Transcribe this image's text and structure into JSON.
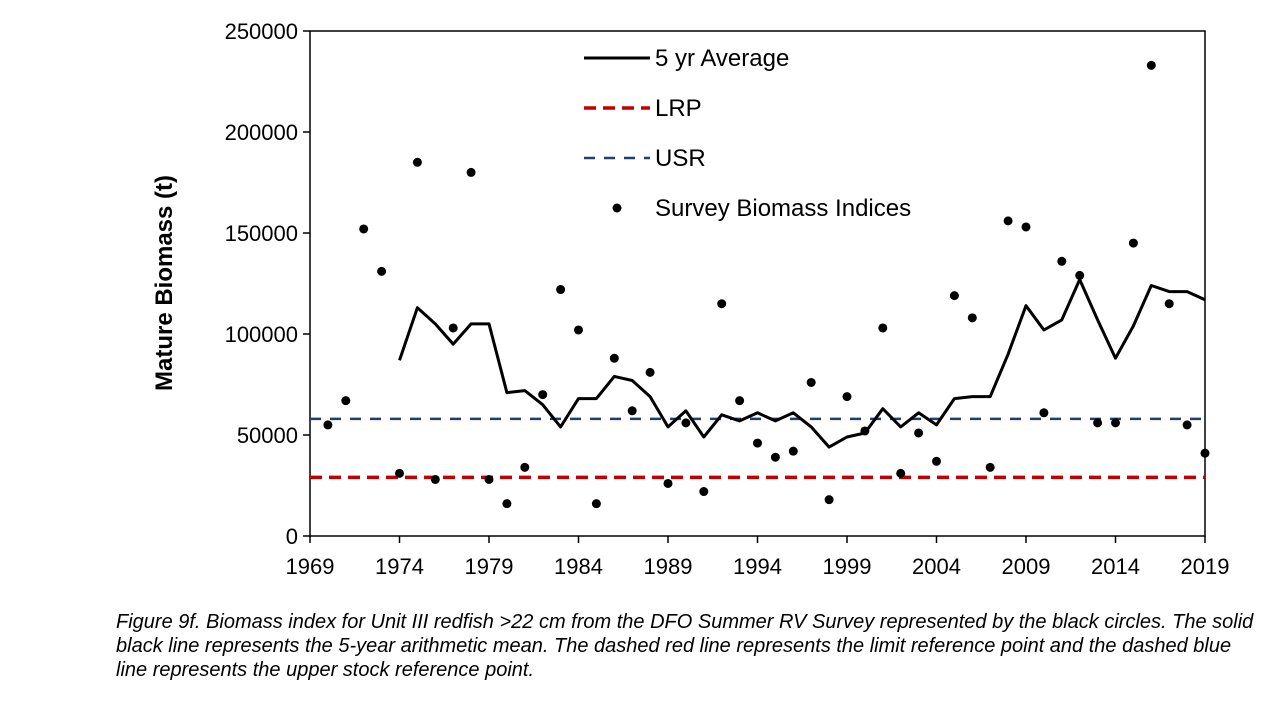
{
  "chart_data": {
    "type": "line",
    "title": "",
    "xlabel": "",
    "ylabel": "Mature Biomass (t)",
    "xlim": [
      1969,
      2019
    ],
    "ylim": [
      0,
      250000
    ],
    "x_ticks": [
      "1969",
      "1974",
      "1979",
      "1984",
      "1989",
      "1994",
      "1999",
      "2004",
      "2009",
      "2014",
      "2019"
    ],
    "y_ticks": [
      "0",
      "50000",
      "100000",
      "150000",
      "200000",
      "250000"
    ],
    "grid": false,
    "legend_position": "top-center",
    "series": [
      {
        "name": "5 yr Average",
        "kind": "line",
        "style": "solid",
        "color": "#000000",
        "points": [
          [
            1974,
            87000
          ],
          [
            1975,
            113000
          ],
          [
            1976,
            105000
          ],
          [
            1977,
            95000
          ],
          [
            1978,
            105000
          ],
          [
            1979,
            105000
          ],
          [
            1980,
            71000
          ],
          [
            1981,
            72000
          ],
          [
            1982,
            65000
          ],
          [
            1983,
            54000
          ],
          [
            1984,
            68000
          ],
          [
            1985,
            68000
          ],
          [
            1986,
            79000
          ],
          [
            1987,
            77000
          ],
          [
            1988,
            69000
          ],
          [
            1989,
            54000
          ],
          [
            1990,
            62000
          ],
          [
            1991,
            49000
          ],
          [
            1992,
            60000
          ],
          [
            1993,
            57000
          ],
          [
            1994,
            61000
          ],
          [
            1995,
            57000
          ],
          [
            1996,
            61000
          ],
          [
            1997,
            54000
          ],
          [
            1998,
            44000
          ],
          [
            1999,
            49000
          ],
          [
            2000,
            51000
          ],
          [
            2001,
            63000
          ],
          [
            2002,
            54000
          ],
          [
            2003,
            61000
          ],
          [
            2004,
            55000
          ],
          [
            2005,
            68000
          ],
          [
            2006,
            69000
          ],
          [
            2007,
            69000
          ],
          [
            2008,
            90000
          ],
          [
            2009,
            114000
          ],
          [
            2010,
            102000
          ],
          [
            2011,
            107000
          ],
          [
            2012,
            127000
          ],
          [
            2013,
            107000
          ],
          [
            2014,
            88000
          ],
          [
            2015,
            104000
          ],
          [
            2016,
            124000
          ],
          [
            2017,
            121000
          ],
          [
            2018,
            121000
          ],
          [
            2019,
            117000
          ]
        ]
      },
      {
        "name": "LRP",
        "kind": "reference",
        "style": "dashed",
        "color": "#c00000",
        "x": [
          1969,
          2019
        ],
        "value": 29000
      },
      {
        "name": "USR",
        "kind": "reference",
        "style": "dashed",
        "color": "#1f3f6e",
        "x": [
          1969,
          2019
        ],
        "value": 58000
      },
      {
        "name": "Survey Biomass Indices",
        "kind": "scatter",
        "color": "#000000",
        "points": [
          [
            1970,
            55000
          ],
          [
            1971,
            67000
          ],
          [
            1972,
            152000
          ],
          [
            1973,
            131000
          ],
          [
            1974,
            31000
          ],
          [
            1975,
            185000
          ],
          [
            1976,
            28000
          ],
          [
            1977,
            103000
          ],
          [
            1978,
            180000
          ],
          [
            1979,
            28000
          ],
          [
            1980,
            16000
          ],
          [
            1981,
            34000
          ],
          [
            1982,
            70000
          ],
          [
            1983,
            122000
          ],
          [
            1984,
            102000
          ],
          [
            1985,
            16000
          ],
          [
            1986,
            88000
          ],
          [
            1987,
            62000
          ],
          [
            1988,
            81000
          ],
          [
            1989,
            26000
          ],
          [
            1990,
            56000
          ],
          [
            1991,
            22000
          ],
          [
            1992,
            115000
          ],
          [
            1993,
            67000
          ],
          [
            1994,
            46000
          ],
          [
            1995,
            39000
          ],
          [
            1996,
            42000
          ],
          [
            1997,
            76000
          ],
          [
            1998,
            18000
          ],
          [
            1999,
            69000
          ],
          [
            2000,
            52000
          ],
          [
            2001,
            103000
          ],
          [
            2002,
            31000
          ],
          [
            2003,
            51000
          ],
          [
            2004,
            37000
          ],
          [
            2005,
            119000
          ],
          [
            2006,
            108000
          ],
          [
            2007,
            34000
          ],
          [
            2008,
            156000
          ],
          [
            2009,
            153000
          ],
          [
            2010,
            61000
          ],
          [
            2011,
            136000
          ],
          [
            2012,
            129000
          ],
          [
            2013,
            56000
          ],
          [
            2014,
            56000
          ],
          [
            2015,
            145000
          ],
          [
            2016,
            233000
          ],
          [
            2017,
            115000
          ],
          [
            2018,
            55000
          ],
          [
            2019,
            41000
          ]
        ]
      }
    ]
  },
  "caption": "Figure 9f. Biomass index for Unit III redfish >22 cm from the DFO Summer RV Survey represented by the black circles. The solid black line represents the 5-year arithmetic mean. The dashed red line represents the limit reference point and the dashed blue line represents the upper stock reference point."
}
